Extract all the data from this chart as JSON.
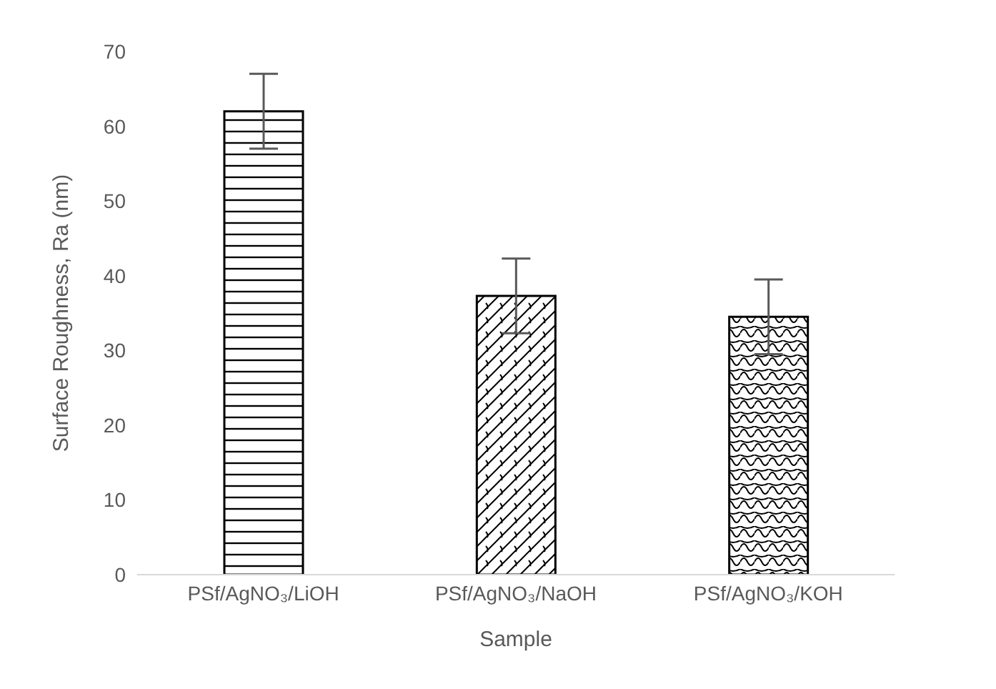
{
  "chart_data": {
    "type": "bar",
    "categories": [
      "PSf/AgNO₃/LiOH",
      "PSf/AgNO₃/NaOH",
      "PSf/AgNO₃/KOH"
    ],
    "values": [
      62,
      37.3,
      34.5
    ],
    "errors": [
      5,
      5,
      5
    ],
    "color": "#000000",
    "xlabel": "Sample",
    "ylabel": "Surface Roughness, Ra (nm)",
    "ylim": [
      0,
      70
    ],
    "yticks": [
      0,
      10,
      20,
      30,
      40,
      50,
      60,
      70
    ],
    "grid": false
  }
}
